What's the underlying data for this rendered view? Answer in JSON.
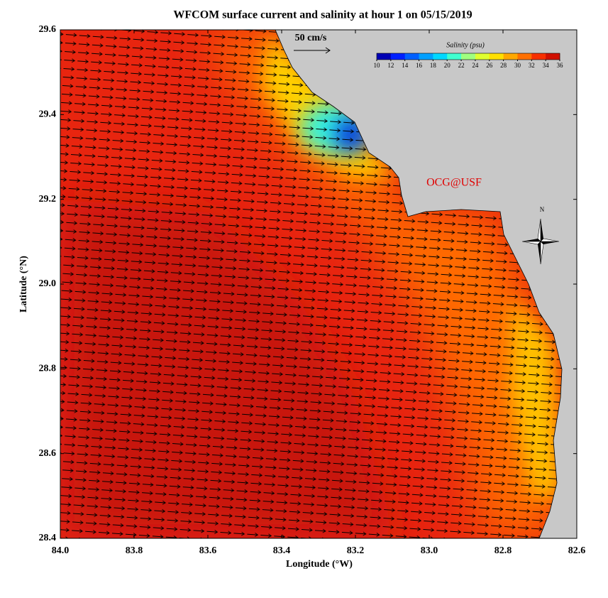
{
  "chart_data": {
    "type": "map",
    "title": "WFCOM surface current and salinity at hour 1 on 05/15/2019",
    "xlabel": "Longitude (°W)",
    "ylabel": "Latitude (°N)",
    "xlim": [
      84.0,
      82.6
    ],
    "ylim": [
      28.4,
      29.6
    ],
    "xticks": [
      {
        "value": 84.0,
        "label": "84.0"
      },
      {
        "value": 83.8,
        "label": "83.8"
      },
      {
        "value": 83.6,
        "label": "83.6"
      },
      {
        "value": 83.4,
        "label": "83.4"
      },
      {
        "value": 83.2,
        "label": "83.2"
      },
      {
        "value": 83.0,
        "label": "83.0"
      },
      {
        "value": 82.8,
        "label": "82.8"
      },
      {
        "value": 82.6,
        "label": "82.6"
      }
    ],
    "yticks": [
      {
        "value": 28.4,
        "label": "28.4"
      },
      {
        "value": 28.6,
        "label": "28.6"
      },
      {
        "value": 28.8,
        "label": "28.8"
      },
      {
        "value": 29.0,
        "label": "29.0"
      },
      {
        "value": 29.2,
        "label": "29.2"
      },
      {
        "value": 29.4,
        "label": "29.4"
      },
      {
        "value": 29.6,
        "label": "29.6"
      }
    ],
    "scale_label": "50 cm/s",
    "credit": "OCG@USF",
    "north_label": "N",
    "colorbar": {
      "label": "Salinity (psu)",
      "range": [
        10,
        36
      ],
      "ticks": [
        10,
        12,
        14,
        16,
        18,
        20,
        22,
        24,
        26,
        28,
        30,
        32,
        34,
        36
      ],
      "colors": [
        "#0000b4",
        "#0020ff",
        "#0060ff",
        "#00a0ff",
        "#00d8ff",
        "#40ffd0",
        "#a0ff80",
        "#e0ff30",
        "#ffe000",
        "#ffa800",
        "#ff7000",
        "#f83000",
        "#d01000"
      ]
    }
  }
}
